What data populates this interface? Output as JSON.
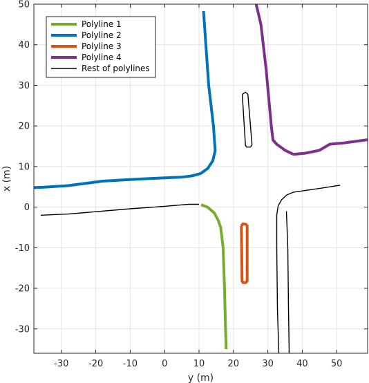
{
  "chart_data": {
    "type": "line",
    "title": "",
    "xlabel": "y (m)",
    "ylabel": "x (m)",
    "xlim": [
      -38,
      59
    ],
    "ylim": [
      -36,
      50
    ],
    "xticks": [
      -30,
      -20,
      -10,
      0,
      10,
      20,
      30,
      40,
      50
    ],
    "yticks": [
      -30,
      -20,
      -10,
      0,
      10,
      20,
      30,
      40,
      50
    ],
    "grid": true,
    "legend_position": "top-left",
    "series": [
      {
        "name": "Polyline 1",
        "color": "#77ac30",
        "width": 4,
        "points": [
          [
            10.6,
            0.6
          ],
          [
            12.5,
            0.0
          ],
          [
            14.5,
            -1.5
          ],
          [
            15.6,
            -3.3
          ],
          [
            16.3,
            -5.0
          ],
          [
            17.0,
            -10.0
          ],
          [
            17.4,
            -20.0
          ],
          [
            17.7,
            -30.0
          ],
          [
            17.9,
            -35.0
          ]
        ]
      },
      {
        "name": "Polyline 2",
        "color": "#0072bd",
        "width": 4,
        "points": [
          [
            -38.0,
            4.8
          ],
          [
            -35.0,
            4.9
          ],
          [
            -28.0,
            5.3
          ],
          [
            -18.0,
            6.4
          ],
          [
            -8.0,
            6.9
          ],
          [
            0.0,
            7.2
          ],
          [
            5.0,
            7.4
          ],
          [
            8.0,
            7.7
          ],
          [
            10.5,
            8.3
          ],
          [
            12.5,
            9.5
          ],
          [
            14.0,
            11.4
          ],
          [
            14.7,
            13.9
          ],
          [
            14.2,
            20.0
          ],
          [
            12.8,
            30.0
          ],
          [
            11.3,
            48.3
          ]
        ]
      },
      {
        "name": "Polyline 3",
        "color": "#d95319",
        "width": 4,
        "points": [
          [
            22.3,
            -4.6
          ],
          [
            22.8,
            -4.1
          ],
          [
            23.6,
            -4.2
          ],
          [
            24.0,
            -4.6
          ],
          [
            24.0,
            -18.2
          ],
          [
            23.6,
            -18.6
          ],
          [
            22.8,
            -18.6
          ],
          [
            22.5,
            -18.2
          ],
          [
            22.3,
            -4.6
          ]
        ]
      },
      {
        "name": "Polyline 4",
        "color": "#7e2f8e",
        "width": 4,
        "points": [
          [
            26.6,
            50.0
          ],
          [
            28.0,
            45.0
          ],
          [
            29.5,
            34.0
          ],
          [
            31.0,
            20.0
          ],
          [
            31.5,
            16.5
          ],
          [
            32.6,
            15.5
          ],
          [
            35.0,
            14.0
          ],
          [
            37.5,
            13.0
          ],
          [
            41.0,
            13.3
          ],
          [
            45.0,
            14.0
          ],
          [
            48.0,
            15.5
          ],
          [
            52.0,
            15.8
          ],
          [
            59.0,
            16.6
          ]
        ]
      },
      {
        "name": "Rest of polylines",
        "color": "#000000",
        "width": 1.4,
        "segments": [
          [
            [
              -36.0,
              -2.0
            ],
            [
              -28.0,
              -1.7
            ],
            [
              -10.0,
              -0.4
            ],
            [
              0.0,
              0.2
            ],
            [
              7.0,
              0.7
            ],
            [
              10.0,
              0.7
            ]
          ],
          [
            [
              22.6,
              27.8
            ],
            [
              23.5,
              28.3
            ],
            [
              24.2,
              27.8
            ],
            [
              25.4,
              15.4
            ],
            [
              25.0,
              14.8
            ],
            [
              23.8,
              14.8
            ],
            [
              23.5,
              15.2
            ],
            [
              22.6,
              27.3
            ],
            [
              22.6,
              27.8
            ]
          ],
          [
            [
              33.2,
              -36.0
            ],
            [
              32.8,
              -25.0
            ],
            [
              32.6,
              -10.0
            ],
            [
              32.6,
              -2.0
            ],
            [
              33.0,
              0.3
            ],
            [
              34.0,
              1.8
            ],
            [
              35.5,
              3.0
            ],
            [
              37.5,
              3.7
            ],
            [
              45.0,
              4.6
            ],
            [
              51.0,
              5.4
            ]
          ],
          [
            [
              35.4,
              -1.0
            ],
            [
              35.8,
              -10.0
            ],
            [
              36.0,
              -25.0
            ],
            [
              36.2,
              -36.0
            ]
          ]
        ]
      }
    ]
  }
}
